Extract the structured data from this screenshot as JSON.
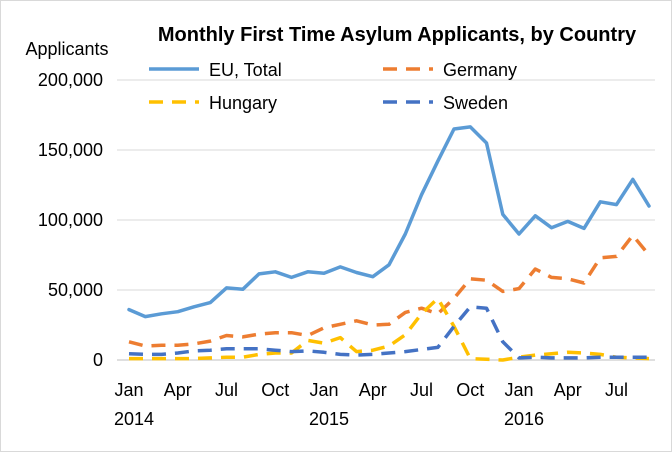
{
  "chart_data": {
    "type": "line",
    "title": "Monthly First Time Asylum Applicants, by Country",
    "ylabel": "Applicants",
    "xlabel": "",
    "ylim": [
      0,
      200000
    ],
    "yticks": [
      0,
      50000,
      100000,
      150000,
      200000
    ],
    "ytick_labels": [
      "0",
      "50,000",
      "100,000",
      "150,000",
      "200,000"
    ],
    "x": [
      "2014-01",
      "2014-02",
      "2014-03",
      "2014-04",
      "2014-05",
      "2014-06",
      "2014-07",
      "2014-08",
      "2014-09",
      "2014-10",
      "2014-11",
      "2014-12",
      "2015-01",
      "2015-02",
      "2015-03",
      "2015-04",
      "2015-05",
      "2015-06",
      "2015-07",
      "2015-08",
      "2015-09",
      "2015-10",
      "2015-11",
      "2015-12",
      "2016-01",
      "2016-02",
      "2016-03",
      "2016-04",
      "2016-05",
      "2016-06",
      "2016-07",
      "2016-08",
      "2016-09"
    ],
    "xticks": [
      {
        "month": "2014-01",
        "label": "Jan",
        "year_label": "2014"
      },
      {
        "month": "2014-04",
        "label": "Apr",
        "year_label": ""
      },
      {
        "month": "2014-07",
        "label": "Jul",
        "year_label": ""
      },
      {
        "month": "2014-10",
        "label": "Oct",
        "year_label": ""
      },
      {
        "month": "2015-01",
        "label": "Jan",
        "year_label": "2015"
      },
      {
        "month": "2015-04",
        "label": "Apr",
        "year_label": ""
      },
      {
        "month": "2015-07",
        "label": "Jul",
        "year_label": ""
      },
      {
        "month": "2015-10",
        "label": "Oct",
        "year_label": ""
      },
      {
        "month": "2016-01",
        "label": "Jan",
        "year_label": "2016"
      },
      {
        "month": "2016-04",
        "label": "Apr",
        "year_label": ""
      },
      {
        "month": "2016-07",
        "label": "Jul",
        "year_label": ""
      }
    ],
    "grid": true,
    "legend_position": "top",
    "series": [
      {
        "name": "EU, Total",
        "color": "#5b9bd5",
        "dash": "solid",
        "values": [
          36000,
          31000,
          33000,
          34500,
          38000,
          41000,
          51500,
          50500,
          61500,
          63000,
          59000,
          63000,
          62000,
          66500,
          62500,
          59500,
          68000,
          90000,
          118000,
          142000,
          165000,
          166500,
          155000,
          104000,
          90000,
          103000,
          94500,
          99000,
          94000,
          113000,
          111000,
          129000,
          110000
        ]
      },
      {
        "name": "Germany",
        "color": "#ed7d31",
        "dash": "dashed",
        "values": [
          13000,
          10000,
          10500,
          10500,
          11500,
          13500,
          17500,
          16500,
          18500,
          19500,
          19500,
          17500,
          23000,
          25500,
          28000,
          25000,
          25500,
          34000,
          37000,
          33000,
          44000,
          58000,
          57000,
          49000,
          51000,
          65000,
          59000,
          58000,
          55000,
          73000,
          74000,
          89000,
          75000
        ]
      },
      {
        "name": "Hungary",
        "color": "#ffc000",
        "dash": "dashed",
        "values": [
          1000,
          1000,
          1000,
          1000,
          1000,
          1500,
          2000,
          2000,
          4000,
          5000,
          5000,
          14000,
          12000,
          16000,
          6000,
          7000,
          10000,
          18000,
          33000,
          44000,
          24000,
          1000,
          500,
          0,
          2000,
          3500,
          4500,
          5500,
          5000,
          4000,
          2000,
          1500,
          1000
        ]
      },
      {
        "name": "Sweden",
        "color": "#4472c4",
        "dash": "dashed",
        "values": [
          4500,
          4000,
          4000,
          5000,
          6500,
          7000,
          8000,
          8000,
          8000,
          7000,
          6000,
          6500,
          5500,
          4000,
          3500,
          4000,
          5000,
          6000,
          7500,
          9000,
          24000,
          38000,
          37000,
          13000,
          1500,
          2000,
          1500,
          1500,
          1500,
          2000,
          2000,
          2000,
          2000
        ]
      }
    ]
  }
}
